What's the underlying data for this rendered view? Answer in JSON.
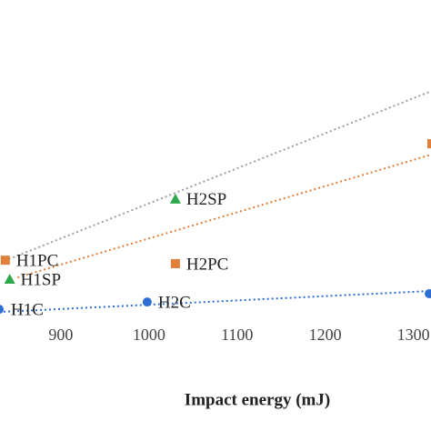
{
  "chart_data": {
    "type": "scatter",
    "x_label": "Impact energy (mJ)",
    "xlim": [
      831,
      1320
    ],
    "xticks": [
      900,
      1000,
      1100,
      1200,
      1300
    ],
    "ylim": [
      0,
      100
    ],
    "series": [
      {
        "color": "#2e6fd6",
        "marker": "circle",
        "x": [
          830,
          998,
          1318
        ],
        "values": [
          10.5,
          12.6,
          15
        ],
        "labels": [
          "H1C",
          "H2C",
          null
        ],
        "trend": {
          "color": "#2e6fd6",
          "x": [
            830,
            1321
          ],
          "values": [
            9.7,
            15.8
          ]
        }
      },
      {
        "color": "#e0803a",
        "marker": "square",
        "x": [
          837,
          1030,
          1321
        ],
        "values": [
          24.7,
          23.7,
          58.4
        ],
        "labels": [
          "H1PC",
          "H2PC",
          null
        ],
        "trend": {
          "color": "#e0803a",
          "x": [
            851,
            1321
          ],
          "values": [
            19.7,
            55.3
          ]
        }
      },
      {
        "color": "#2ea84a",
        "marker": "triangle",
        "x": [
          842,
          1030
        ],
        "values": [
          19.2,
          42.4
        ],
        "labels": [
          "H1SP",
          "H2SP"
        ],
        "trend": {
          "color": "#a0a0a0",
          "x": [
            841,
            1321
          ],
          "values": [
            25,
            73.7
          ]
        }
      }
    ]
  }
}
